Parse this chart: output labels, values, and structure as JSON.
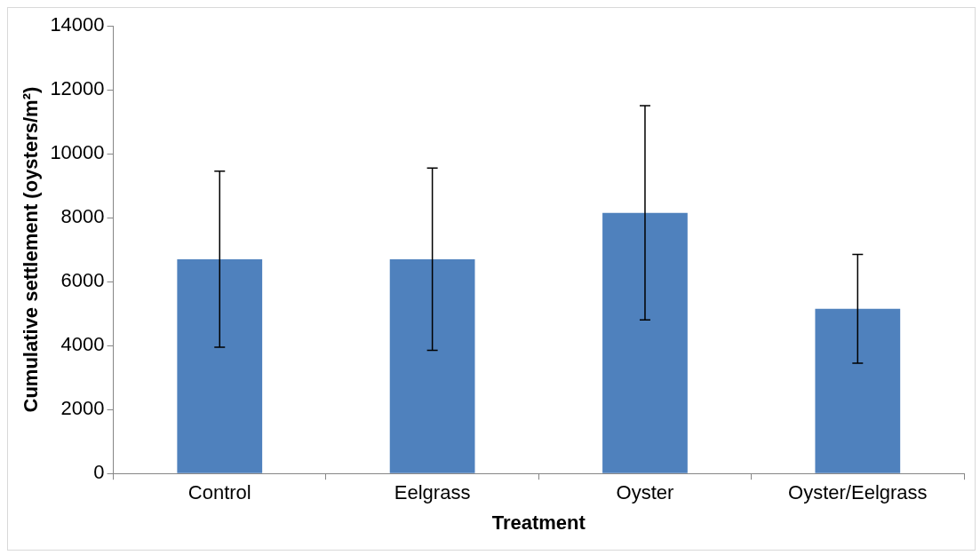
{
  "chart_data": {
    "type": "bar",
    "xlabel": "Treatment",
    "ylabel": "Cumulative settlement (oysters/m²)",
    "categories": [
      "Control",
      "Eelgrass",
      "Oyster",
      "Oyster/Eelgrass"
    ],
    "values": [
      6700,
      6700,
      8150,
      5150
    ],
    "errors": [
      2750,
      2850,
      3350,
      1700
    ],
    "color": "#4f81bd",
    "ylim": [
      0,
      14000
    ],
    "yticks": [
      0,
      2000,
      4000,
      6000,
      8000,
      10000,
      12000,
      14000
    ],
    "grid": false,
    "legend": false
  }
}
